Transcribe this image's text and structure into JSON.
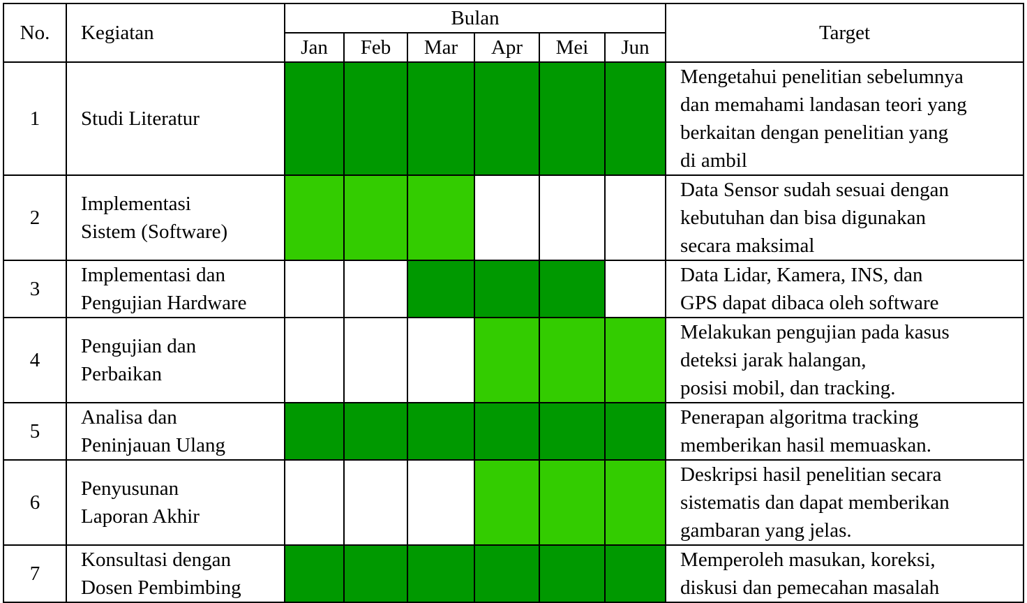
{
  "colors": {
    "dark": "#009900",
    "light": "#33cc00",
    "empty": "#ffffff"
  },
  "header": {
    "no": "No.",
    "kegiatan": "Kegiatan",
    "bulan": "Bulan",
    "target": "Target",
    "months": [
      "Jan",
      "Feb",
      "Mar",
      "Apr",
      "Mei",
      "Jun"
    ]
  },
  "rows": [
    {
      "no": "1",
      "activity": [
        "Studi Literatur"
      ],
      "schedule": [
        "dark",
        "dark",
        "dark",
        "dark",
        "dark",
        "dark"
      ],
      "target": [
        "Mengetahui penelitian sebelumnya",
        "dan memahami landasan teori yang",
        "berkaitan dengan penelitian yang",
        "di ambil"
      ]
    },
    {
      "no": "2",
      "activity": [
        "Implementasi",
        "Sistem (Software)"
      ],
      "schedule": [
        "light",
        "light",
        "light",
        "empty",
        "empty",
        "empty"
      ],
      "target": [
        "Data Sensor sudah sesuai dengan",
        "kebutuhan dan bisa digunakan",
        "secara maksimal"
      ]
    },
    {
      "no": "3",
      "activity": [
        "Implementasi dan",
        "Pengujian Hardware"
      ],
      "schedule": [
        "empty",
        "empty",
        "dark",
        "dark",
        "dark",
        "empty"
      ],
      "target": [
        "Data Lidar, Kamera, INS, dan",
        "GPS dapat dibaca oleh software"
      ]
    },
    {
      "no": "4",
      "activity": [
        "Pengujian dan",
        "Perbaikan"
      ],
      "schedule": [
        "empty",
        "empty",
        "empty",
        "light",
        "light",
        "light"
      ],
      "target": [
        "Melakukan pengujian pada kasus",
        "deteksi jarak halangan,",
        "posisi mobil, dan tracking."
      ]
    },
    {
      "no": "5",
      "activity": [
        "Analisa dan",
        "Peninjauan Ulang"
      ],
      "schedule": [
        "dark",
        "dark",
        "dark",
        "dark",
        "dark",
        "dark"
      ],
      "target": [
        "Penerapan algoritma tracking",
        "memberikan hasil memuaskan."
      ]
    },
    {
      "no": "6",
      "activity": [
        "Penyusunan",
        "Laporan Akhir"
      ],
      "schedule": [
        "empty",
        "empty",
        "empty",
        "light",
        "light",
        "light"
      ],
      "target": [
        "Deskripsi hasil penelitian secara",
        "sistematis dan dapat memberikan",
        "gambaran yang jelas."
      ]
    },
    {
      "no": "7",
      "activity": [
        "Konsultasi dengan",
        "Dosen Pembimbing"
      ],
      "schedule": [
        "dark",
        "dark",
        "dark",
        "dark",
        "dark",
        "dark"
      ],
      "target": [
        "Memperoleh masukan, koreksi,",
        "diskusi dan pemecahan masalah"
      ]
    }
  ]
}
